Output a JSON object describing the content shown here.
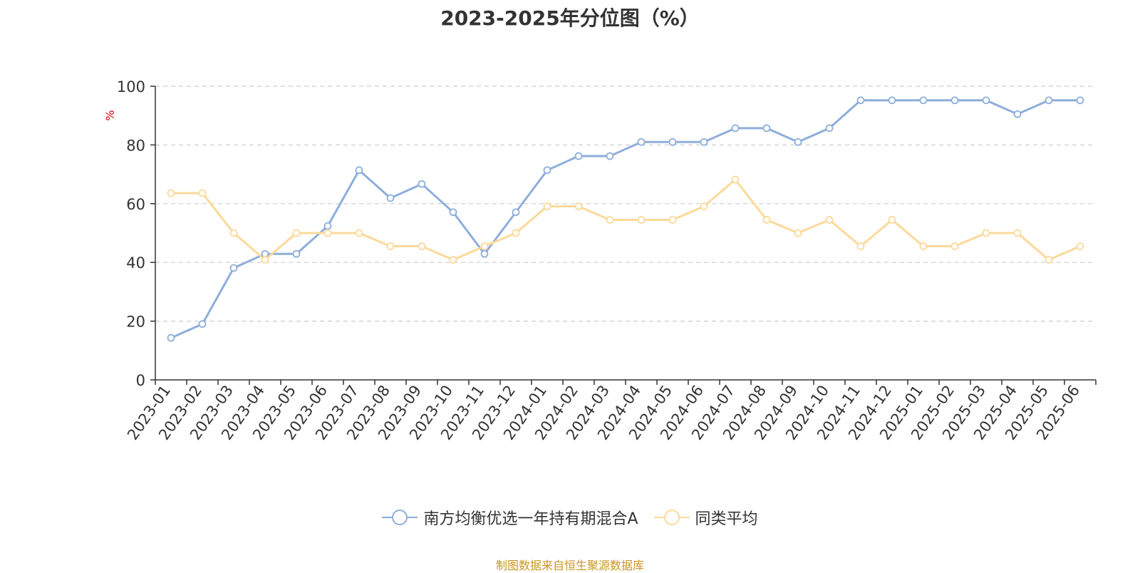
{
  "chart_data": {
    "type": "line",
    "title": "2023-2025年分位图（%）",
    "xlabel": "",
    "ylabel": "%",
    "ylim": [
      0,
      100
    ],
    "yticks": [
      0,
      20,
      40,
      60,
      80,
      100
    ],
    "grid": true,
    "legend_position": "bottom",
    "categories": [
      "2023-01",
      "2023-02",
      "2023-03",
      "2023-04",
      "2023-05",
      "2023-06",
      "2023-07",
      "2023-08",
      "2023-09",
      "2023-10",
      "2023-11",
      "2023-12",
      "2024-01",
      "2024-02",
      "2024-03",
      "2024-04",
      "2024-05",
      "2024-06",
      "2024-07",
      "2024-08",
      "2024-09",
      "2024-10",
      "2024-11",
      "2024-12",
      "2025-01",
      "2025-02",
      "2025-03",
      "2025-04",
      "2025-05",
      "2025-06"
    ],
    "series": [
      {
        "name": "南方均衡优选一年持有期混合A",
        "color": "#8eaedb",
        "values": [
          14.3,
          19.0,
          38.1,
          42.9,
          42.9,
          52.4,
          71.4,
          61.9,
          66.7,
          57.1,
          42.9,
          57.1,
          71.4,
          76.2,
          76.2,
          81.0,
          81.0,
          81.0,
          85.7,
          85.7,
          81.0,
          85.7,
          95.2,
          95.2,
          95.2,
          95.2,
          95.2,
          90.5,
          95.2,
          95.2
        ]
      },
      {
        "name": "同类平均",
        "color": "#fcd99a",
        "values": [
          63.6,
          63.6,
          50.0,
          40.9,
          50.0,
          50.0,
          50.0,
          45.5,
          45.5,
          40.9,
          45.5,
          50.0,
          59.1,
          59.1,
          54.5,
          54.5,
          54.5,
          59.1,
          68.2,
          54.5,
          50.0,
          54.5,
          45.5,
          54.5,
          45.5,
          45.5,
          50.0,
          50.0,
          40.9,
          45.5
        ]
      }
    ]
  },
  "source_note": "制图数据来自恒生聚源数据库",
  "colors": {
    "grid": "#cccccc",
    "axis": "#333333",
    "ylabel": "#e00000",
    "source": "#c8961e"
  }
}
